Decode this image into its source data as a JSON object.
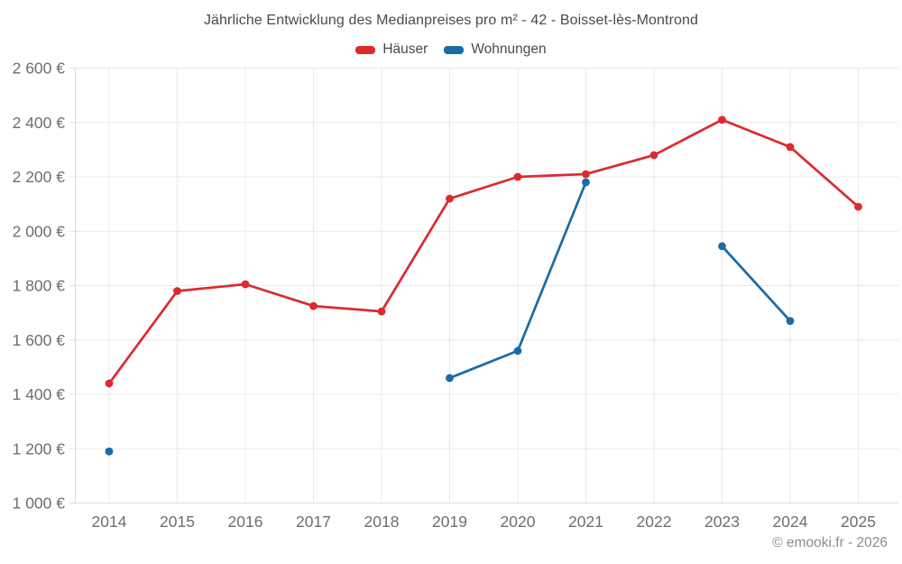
{
  "header": {
    "title": "Jährliche Entwicklung des Medianpreises pro m² - 42 - Boisset-lès-Montrond"
  },
  "footer": {
    "credit": "© emooki.fr - 2026"
  },
  "chart_data": {
    "type": "line",
    "title": "Jährliche Entwicklung des Medianpreises pro m² - 42 - Boisset-lès-Montrond",
    "categories": [
      "2014",
      "2015",
      "2016",
      "2017",
      "2018",
      "2019",
      "2020",
      "2021",
      "2022",
      "2023",
      "2024",
      "2025"
    ],
    "series": [
      {
        "name": "Häuser",
        "color": "#dc2a2f",
        "values": [
          1440,
          1780,
          1805,
          1725,
          1705,
          2120,
          2200,
          2210,
          2280,
          2410,
          2310,
          2090
        ]
      },
      {
        "name": "Wohnungen",
        "color": "#1a6ba6",
        "values": [
          1190,
          null,
          null,
          null,
          null,
          1460,
          1560,
          2180,
          null,
          1945,
          1670,
          null
        ]
      }
    ],
    "xlabel": "",
    "ylabel": "",
    "ylim": [
      1000,
      2600
    ],
    "ytick_step": 200,
    "y_ticks": [
      {
        "value": 1000,
        "label": "1 000 €"
      },
      {
        "value": 1200,
        "label": "1 200 €"
      },
      {
        "value": 1400,
        "label": "1 400 €"
      },
      {
        "value": 1600,
        "label": "1 600 €"
      },
      {
        "value": 1800,
        "label": "1 800 €"
      },
      {
        "value": 2000,
        "label": "2 000 €"
      },
      {
        "value": 2200,
        "label": "2 200 €"
      },
      {
        "value": 2400,
        "label": "2 400 €"
      },
      {
        "value": 2600,
        "label": "2 600 €"
      }
    ],
    "grid": true,
    "legend_position": "top",
    "colors": {
      "grid": "#e9e9e9",
      "axis": "#dcdcdc",
      "tick_label": "#6e6e6e",
      "title_text": "#4a4a4a",
      "credit_text": "#8d8d8d"
    }
  }
}
